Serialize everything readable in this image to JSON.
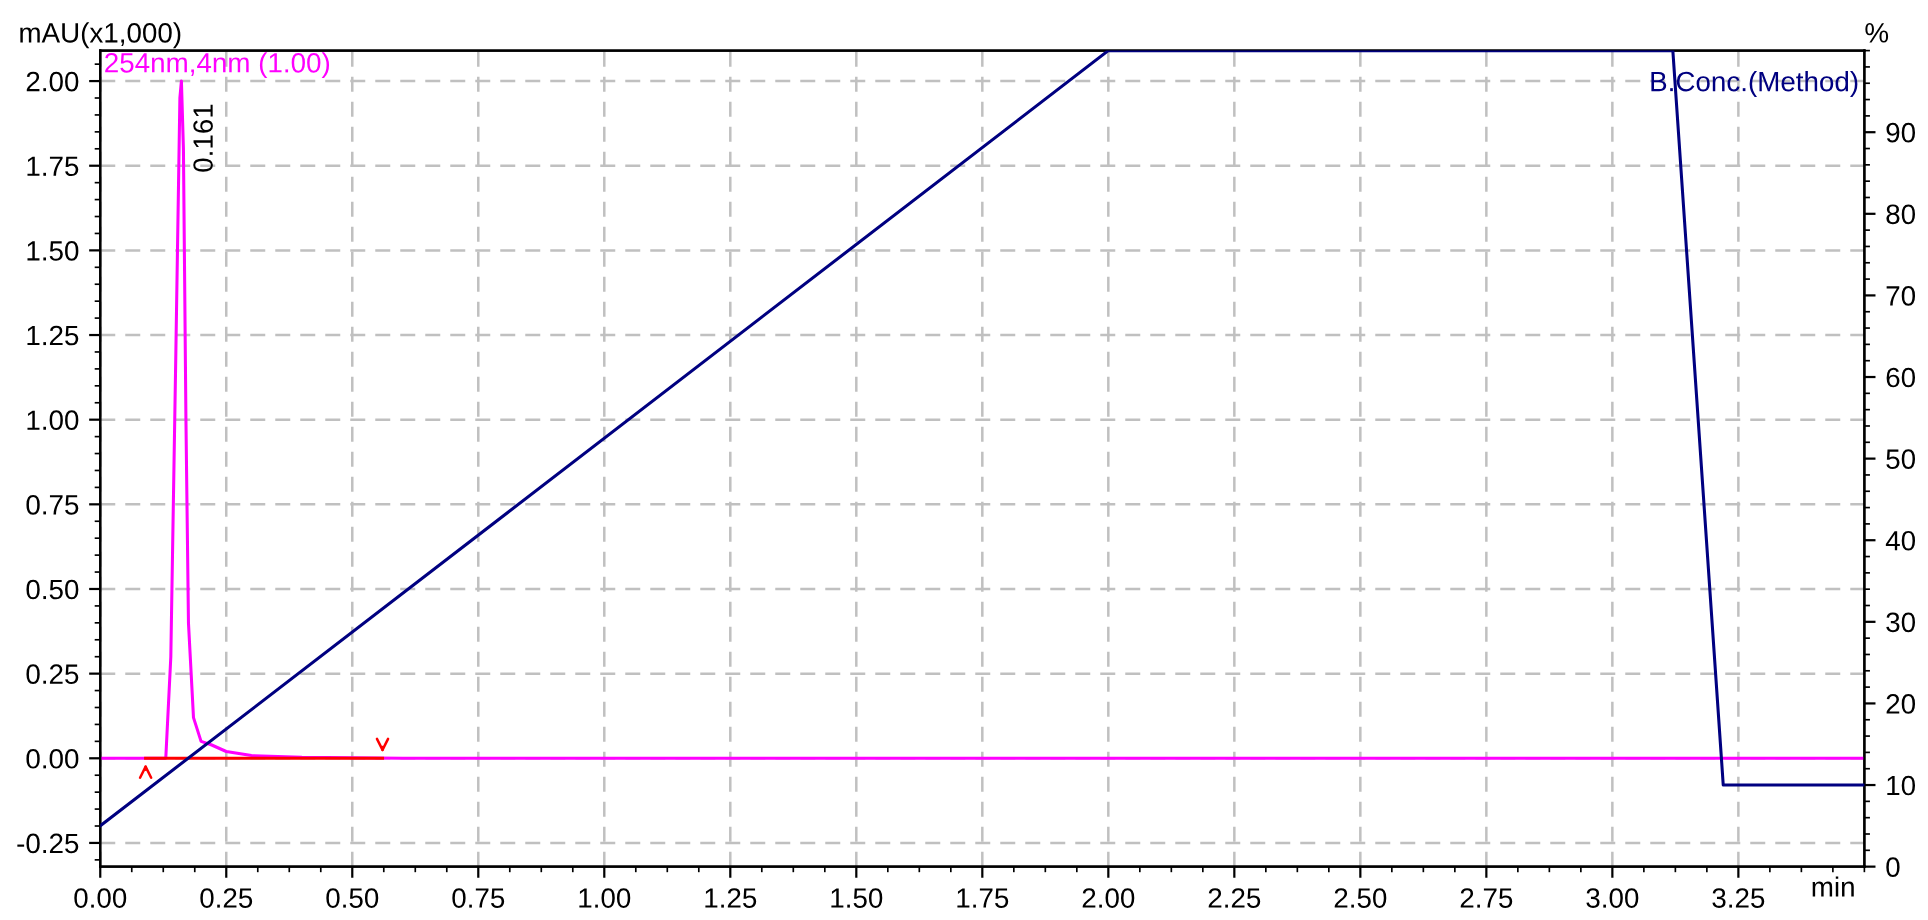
{
  "chart_data": {
    "type": "line",
    "ylabel": "mAU(x1,000)",
    "xlabel": "min",
    "y2label": "%",
    "xlim": [
      0,
      3.5
    ],
    "xticks": [
      {
        "value": 0,
        "label": "0.00"
      },
      {
        "value": 0.25,
        "label": "0.25"
      },
      {
        "value": 0.5,
        "label": "0.50"
      },
      {
        "value": 0.75,
        "label": "0.75"
      },
      {
        "value": 1,
        "label": "1.00"
      },
      {
        "value": 1.25,
        "label": "1.25"
      },
      {
        "value": 1.5,
        "label": "1.50"
      },
      {
        "value": 1.75,
        "label": "1.75"
      },
      {
        "value": 2,
        "label": "2.00"
      },
      {
        "value": 2.25,
        "label": "2.25"
      },
      {
        "value": 2.5,
        "label": "2.50"
      },
      {
        "value": 2.75,
        "label": "2.75"
      },
      {
        "value": 3,
        "label": "3.00"
      },
      {
        "value": 3.25,
        "label": "3.25"
      }
    ],
    "ylim": [
      -0.32,
      2.09
    ],
    "yticks": [
      {
        "value": -0.25,
        "label": "-0.25"
      },
      {
        "value": 0,
        "label": "0.00"
      },
      {
        "value": 0.25,
        "label": "0.25"
      },
      {
        "value": 0.5,
        "label": "0.50"
      },
      {
        "value": 0.75,
        "label": "0.75"
      },
      {
        "value": 1,
        "label": "1.00"
      },
      {
        "value": 1.25,
        "label": "1.25"
      },
      {
        "value": 1.5,
        "label": "1.50"
      },
      {
        "value": 1.75,
        "label": "1.75"
      },
      {
        "value": 2,
        "label": "2.00"
      }
    ],
    "y2lim": [
      0,
      100
    ],
    "y2ticks": [
      0,
      10,
      20,
      30,
      40,
      50,
      60,
      70,
      80,
      90
    ],
    "grid": true,
    "legend": false,
    "marker": "none",
    "line_style": "solid",
    "annotations": [
      {
        "text": "0.161",
        "x": 0.161,
        "y": 2.0
      }
    ],
    "series": [
      {
        "name": "B.Conc.(Method)",
        "color": "#000080",
        "axis": "y2",
        "x": [
          0,
          2.0,
          3.12,
          3.22,
          3.5
        ],
        "values": [
          5,
          100,
          100,
          10,
          10
        ]
      },
      {
        "name": "254nm,4nm (1.00)",
        "color": "#ff00ff",
        "x": [
          0,
          0.13,
          0.14,
          0.15,
          0.158,
          0.161,
          0.165,
          0.17,
          0.175,
          0.185,
          0.2,
          0.22,
          0.25,
          0.3,
          0.4,
          0.6,
          3.5
        ],
        "values": [
          0,
          0,
          0.3,
          1.2,
          1.95,
          2.0,
          1.8,
          1.0,
          0.4,
          0.12,
          0.05,
          0.04,
          0.02,
          0.008,
          0.003,
          0,
          0
        ]
      },
      {
        "color": "#ff0000",
        "x": [
          0.09,
          0.56
        ],
        "values": [
          0,
          0
        ]
      }
    ]
  }
}
